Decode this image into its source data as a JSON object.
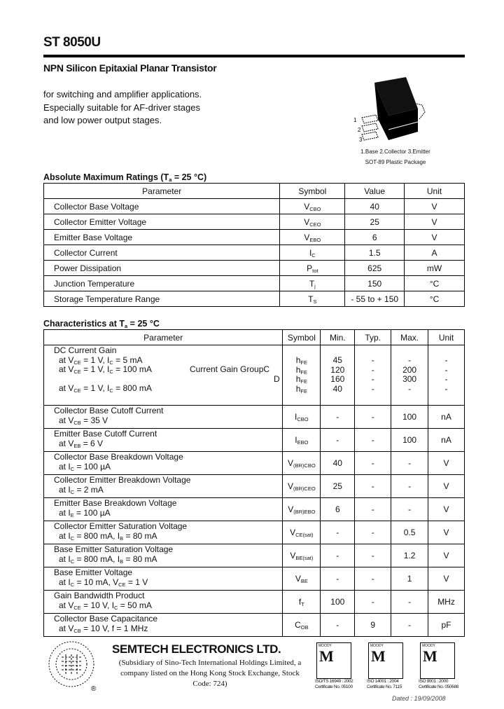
{
  "title": "ST 8050U",
  "subtitle": "NPN Silicon Epitaxial Planar Transistor",
  "description": [
    "for switching and amplifier applications.",
    "Especially suitable for AF-driver stages",
    "and low power output stages."
  ],
  "package": {
    "pins": [
      "1",
      "2",
      "3"
    ],
    "pin_caption": "1.Base  2.Collector  3.Emitter",
    "package_caption": "SOT-89 Plastic Package"
  },
  "abs_max": {
    "heading": "Absolute Maximum Ratings (T",
    "heading_sub": "a",
    "heading_tail": " = 25 °C)",
    "headers": [
      "Parameter",
      "Symbol",
      "Value",
      "Unit"
    ],
    "rows": [
      {
        "param": "Collector Base Voltage",
        "sym": "V",
        "sub": "CBO",
        "value": "40",
        "unit": "V"
      },
      {
        "param": "Collector Emitter Voltage",
        "sym": "V",
        "sub": "CEO",
        "value": "25",
        "unit": "V"
      },
      {
        "param": "Emitter Base Voltage",
        "sym": "V",
        "sub": "EBO",
        "value": "6",
        "unit": "V"
      },
      {
        "param": "Collector Current",
        "sym": "I",
        "sub": "C",
        "value": "1.5",
        "unit": "A"
      },
      {
        "param": "Power Dissipation",
        "sym": "P",
        "sub": "tot",
        "value": "625",
        "unit": "mW"
      },
      {
        "param": "Junction Temperature",
        "sym": "T",
        "sub": "j",
        "value": "150",
        "unit": "°C"
      },
      {
        "param": "Storage Temperature Range",
        "sym": "T",
        "sub": "S",
        "value": "- 55 to + 150",
        "unit": "°C"
      }
    ]
  },
  "characteristics": {
    "heading": "Characteristics at T",
    "heading_sub": "a",
    "heading_tail": " = 25 °C",
    "headers": [
      "Parameter",
      "Symbol",
      "Min.",
      "Typ.",
      "Max.",
      "Unit"
    ],
    "dc_gain": {
      "param": "DC Current Gain",
      "group_label": "Current Gain Group",
      "lines": [
        {
          "cond": [
            [
              "at V",
              ""
            ],
            [
              "CE",
              "s"
            ],
            [
              " = 1 V, I",
              ""
            ],
            [
              "C",
              "s"
            ],
            [
              " = 5 mA",
              ""
            ]
          ],
          "group": "",
          "sym": "h",
          "sub": "FE",
          "min": "45",
          "typ": "-",
          "max": "-",
          "unit": "-"
        },
        {
          "cond": [
            [
              "at V",
              ""
            ],
            [
              "CE",
              "s"
            ],
            [
              " = 1 V, I",
              ""
            ],
            [
              "C",
              "s"
            ],
            [
              " = 100 mA",
              ""
            ]
          ],
          "group": "C",
          "sym": "h",
          "sub": "FE",
          "min": "120",
          "typ": "-",
          "max": "200",
          "unit": "-"
        },
        {
          "cond": [],
          "group": "D",
          "sym": "h",
          "sub": "FE",
          "min": "160",
          "typ": "-",
          "max": "300",
          "unit": "-"
        },
        {
          "cond": [
            [
              "at V",
              ""
            ],
            [
              "CE",
              "s"
            ],
            [
              " = 1 V, I",
              ""
            ],
            [
              "C",
              "s"
            ],
            [
              " = 800 mA",
              ""
            ]
          ],
          "group": "",
          "sym": "h",
          "sub": "FE",
          "min": "40",
          "typ": "-",
          "max": "-",
          "unit": "-"
        }
      ]
    },
    "rows": [
      {
        "param": "Collector Base Cutoff Current",
        "cond": [
          [
            "at V",
            ""
          ],
          [
            "CB",
            "s"
          ],
          [
            " = 35 V",
            ""
          ]
        ],
        "sym": "I",
        "sub": "CBO",
        "min": "-",
        "typ": "-",
        "max": "100",
        "unit": "nA"
      },
      {
        "param": "Emitter Base Cutoff Current",
        "cond": [
          [
            "at V",
            ""
          ],
          [
            "EB",
            "s"
          ],
          [
            " = 6 V",
            ""
          ]
        ],
        "sym": "I",
        "sub": "EBO",
        "min": "-",
        "typ": "-",
        "max": "100",
        "unit": "nA"
      },
      {
        "param": "Collector Base Breakdown Voltage",
        "cond": [
          [
            "at I",
            ""
          ],
          [
            "C",
            "s"
          ],
          [
            " = 100 µA",
            ""
          ]
        ],
        "sym": "V",
        "sub": "(BR)CBO",
        "min": "40",
        "typ": "-",
        "max": "-",
        "unit": "V"
      },
      {
        "param": "Collector Emitter Breakdown Voltage",
        "cond": [
          [
            "at I",
            ""
          ],
          [
            "C",
            "s"
          ],
          [
            " = 2 mA",
            ""
          ]
        ],
        "sym": "V",
        "sub": "(BR)CEO",
        "min": "25",
        "typ": "-",
        "max": "-",
        "unit": "V"
      },
      {
        "param": "Emitter Base Breakdown Voltage",
        "cond": [
          [
            "at I",
            ""
          ],
          [
            "E",
            "s"
          ],
          [
            " = 100 µA",
            ""
          ]
        ],
        "sym": "V",
        "sub": "(BR)EBO",
        "min": "6",
        "typ": "-",
        "max": "-",
        "unit": "V"
      },
      {
        "param": "Collector Emitter Saturation Voltage",
        "cond": [
          [
            "at I",
            ""
          ],
          [
            "C",
            "s"
          ],
          [
            " = 800 mA, I",
            ""
          ],
          [
            "B",
            "s"
          ],
          [
            " = 80 mA",
            ""
          ]
        ],
        "sym": "V",
        "sub": "CE(sat)",
        "min": "-",
        "typ": "-",
        "max": "0.5",
        "unit": "V"
      },
      {
        "param": "Base Emitter Saturation Voltage",
        "cond": [
          [
            "at I",
            ""
          ],
          [
            "C",
            "s"
          ],
          [
            " = 800 mA, I",
            ""
          ],
          [
            "B",
            "s"
          ],
          [
            " = 80 mA",
            ""
          ]
        ],
        "sym": "V",
        "sub": "BE(sat)",
        "min": "-",
        "typ": "-",
        "max": "1.2",
        "unit": "V"
      },
      {
        "param": "Base Emitter Voltage",
        "cond": [
          [
            "at I",
            ""
          ],
          [
            "C",
            "s"
          ],
          [
            " = 10 mA, V",
            ""
          ],
          [
            "CE",
            "s"
          ],
          [
            " = 1 V",
            ""
          ]
        ],
        "sym": "V",
        "sub": "BE",
        "min": "-",
        "typ": "-",
        "max": "1",
        "unit": "V"
      },
      {
        "param": "Gain Bandwidth Product",
        "cond": [
          [
            "at V",
            ""
          ],
          [
            "CE",
            "s"
          ],
          [
            " = 10 V, I",
            ""
          ],
          [
            "C",
            "s"
          ],
          [
            " = 50 mA",
            ""
          ]
        ],
        "sym": "f",
        "sub": "T",
        "min": "100",
        "typ": "-",
        "max": "-",
        "unit": "MHz"
      },
      {
        "param": "Collector Base Capacitance",
        "cond": [
          [
            "at V",
            ""
          ],
          [
            "CB",
            "s"
          ],
          [
            " = 10 V, f = 1 MHz",
            ""
          ]
        ],
        "sym": "C",
        "sub": "OB",
        "min": "-",
        "typ": "9",
        "max": "-",
        "unit": "pF"
      }
    ]
  },
  "footer": {
    "company": "SEMTECH ELECTRONICS LTD.",
    "subsidiary": "(Subsidiary of Sino-Tech International Holdings Limited, a company listed on the Hong Kong Stock Exchange, Stock Code: 724)",
    "registered": "®",
    "certs": [
      {
        "std": "ISO/TS 16949 : 2002",
        "cert": "Certificate No. 05100"
      },
      {
        "std": "ISO 14001 : 2004",
        "cert": "Certificate No. 7115"
      },
      {
        "std": "ISO 9001 : 2000",
        "cert": "Certificate No. 050688"
      }
    ],
    "cert_brand": "MOODY",
    "dated": "Dated : 19/09/2008"
  }
}
